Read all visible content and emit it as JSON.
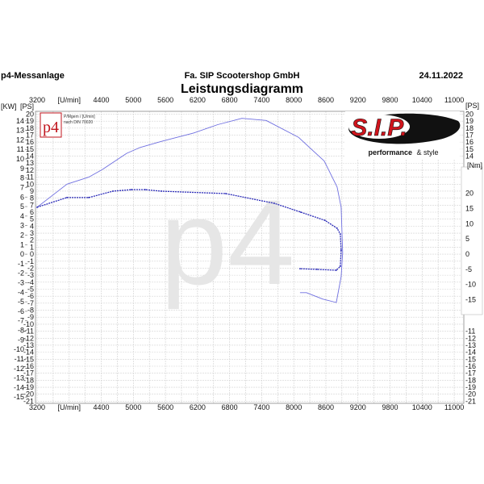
{
  "header": {
    "left": "p4-Messanlage",
    "center": "Fa. SIP Scootershop GmbH",
    "date": "24.11.2022",
    "title": "Leistungsdiagramm"
  },
  "p4_logo": {
    "text": "p4",
    "note_line1": "P/Mgem / [U/min]",
    "note_line2": "nach DIN 70020",
    "color": "#c0141c"
  },
  "watermark": "p4",
  "sip_logo": {
    "brand": "S.I.P.",
    "tagline_bold": "performance",
    "tagline_rest": "& style",
    "color": "#d0141c"
  },
  "chart_data": {
    "type": "line",
    "title": "Leistungsdiagramm",
    "x_unit_label": "[U/min]",
    "x_ticks": [
      3200,
      3800,
      4400,
      5000,
      5600,
      6200,
      6800,
      7400,
      8000,
      8600,
      9200,
      9800,
      10400,
      11000
    ],
    "x_tick_labels": [
      "3200",
      "[U/min]",
      "4400",
      "5000",
      "5600",
      "6200",
      "6800",
      "7400",
      "8000",
      "8600",
      "9200",
      "9800",
      "10400",
      "11000"
    ],
    "xlim": [
      3170,
      11180
    ],
    "left_axis_kw": {
      "label": "[KW]",
      "ticks": [
        14,
        13,
        12,
        11,
        10,
        9,
        8,
        7,
        6,
        5,
        4,
        3,
        2,
        1,
        0,
        -1,
        -2,
        -3,
        -4,
        -5,
        -6,
        -7,
        -8,
        -9,
        -10,
        -11,
        -12,
        -13,
        -14,
        -15
      ]
    },
    "left_axis_ps": {
      "label": "[PS]",
      "ticks": [
        20,
        19,
        18,
        17,
        16,
        15,
        14,
        13,
        12,
        11,
        10,
        9,
        8,
        7,
        6,
        5,
        4,
        3,
        2,
        1,
        0,
        -1,
        -2,
        -3,
        -4,
        -5,
        -6,
        -7,
        -8,
        -9,
        -10,
        -11,
        -12,
        -13,
        -14,
        -15,
        -16,
        -17,
        -18,
        -19,
        -20,
        -21
      ]
    },
    "ylim_ps": [
      -21.3,
      20.4
    ],
    "right_axis_ps": {
      "label": "[PS]",
      "ticks_top": [
        20,
        19,
        18,
        17,
        16,
        15,
        14
      ],
      "ticks_bottom": [
        -11,
        -12,
        -13,
        -14,
        -15,
        -16,
        -17,
        -18,
        -19,
        -20,
        -21
      ]
    },
    "right_axis_nm": {
      "label": "[Nm]",
      "ticks": [
        20,
        15,
        10,
        5,
        0,
        -5,
        -10,
        -15
      ]
    },
    "grid": true,
    "series": [
      {
        "axis": "PS",
        "style": "solid",
        "color": "#6f6fe0",
        "points": [
          [
            3200,
            6.7
          ],
          [
            3758,
            10.0
          ],
          [
            4165,
            11.0
          ],
          [
            4421,
            12.1
          ],
          [
            4874,
            14.4
          ],
          [
            5115,
            15.2
          ],
          [
            5522,
            16.1
          ],
          [
            6125,
            17.3
          ],
          [
            6578,
            18.5
          ],
          [
            7030,
            19.4
          ],
          [
            7483,
            19.1
          ],
          [
            8086,
            16.7
          ],
          [
            8569,
            13.3
          ],
          [
            8810,
            9.6
          ],
          [
            8885,
            6.7
          ],
          [
            8915,
            0.2
          ],
          [
            8885,
            -3.2
          ],
          [
            8795,
            -6.9
          ],
          [
            8538,
            -6.4
          ],
          [
            8237,
            -5.5
          ],
          [
            8116,
            -5.5
          ]
        ]
      },
      {
        "axis": "Nm",
        "style": "dotted",
        "color": "#2a2ab8",
        "points": [
          [
            3200,
            15.4
          ],
          [
            3758,
            18.6
          ],
          [
            4165,
            18.6
          ],
          [
            4618,
            20.7
          ],
          [
            4964,
            21.2
          ],
          [
            5220,
            21.2
          ],
          [
            5522,
            20.7
          ],
          [
            6729,
            19.9
          ],
          [
            7634,
            16.7
          ],
          [
            8131,
            13.8
          ],
          [
            8584,
            11.1
          ],
          [
            8810,
            8.5
          ],
          [
            8870,
            6.6
          ],
          [
            8885,
            1.3
          ],
          [
            8870,
            -4.0
          ],
          [
            8795,
            -5.3
          ],
          [
            8433,
            -5.0
          ],
          [
            8116,
            -4.8
          ]
        ]
      }
    ]
  }
}
